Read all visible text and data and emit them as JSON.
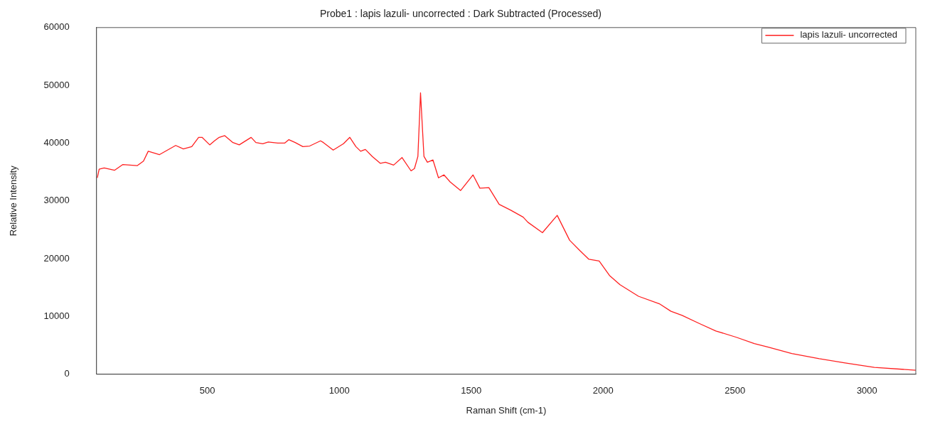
{
  "chart_data": {
    "type": "line",
    "title": "Probe1 : lapis lazuli- uncorrected : Dark Subtracted (Processed)",
    "xlabel": "Raman Shift (cm-1)",
    "ylabel": "Relative Intensity",
    "xlim": [
      80,
      3185
    ],
    "xticks": [
      500,
      1000,
      1500,
      2000,
      2500,
      3000
    ],
    "ylim": [
      0,
      60000
    ],
    "yticks": [
      0,
      10000,
      20000,
      30000,
      40000,
      50000,
      60000
    ],
    "grid": false,
    "legend": "top right",
    "marker": "none",
    "line_style": "solid",
    "series": [
      {
        "name": "lapis lazuli- uncorrected",
        "color": "#ff2020",
        "x": [
          83,
          90,
          109,
          148,
          180,
          234,
          258,
          276,
          318,
          349,
          380,
          409,
          441,
          467,
          480,
          509,
          527,
          545,
          566,
          597,
          621,
          666,
          684,
          710,
          731,
          767,
          793,
          809,
          833,
          862,
          888,
          929,
          940,
          977,
          1016,
          1040,
          1063,
          1081,
          1099,
          1125,
          1156,
          1175,
          1206,
          1238,
          1272,
          1285,
          1298,
          1308,
          1321,
          1334,
          1355,
          1376,
          1397,
          1420,
          1460,
          1507,
          1533,
          1567,
          1606,
          1650,
          1697,
          1715,
          1770,
          1826,
          1873,
          1912,
          1946,
          1985,
          2024,
          2064,
          2134,
          2213,
          2257,
          2299,
          2364,
          2427,
          2505,
          2573,
          2626,
          2715,
          2819,
          2913,
          3028,
          3185
        ],
        "values": [
          34000,
          35500,
          35700,
          35300,
          36300,
          36100,
          36900,
          38600,
          38000,
          38800,
          39600,
          39000,
          39400,
          41000,
          41000,
          39700,
          40400,
          41000,
          41300,
          40100,
          39700,
          41000,
          40100,
          39900,
          40200,
          40000,
          40000,
          40600,
          40100,
          39400,
          39500,
          40400,
          40100,
          38800,
          39900,
          41000,
          39400,
          38600,
          38900,
          37700,
          36500,
          36700,
          36200,
          37500,
          35200,
          35600,
          37700,
          48700,
          37700,
          36700,
          37100,
          34000,
          34500,
          33300,
          31800,
          34500,
          32200,
          32300,
          29400,
          28400,
          27200,
          26300,
          24500,
          27500,
          23200,
          21400,
          19900,
          19600,
          17100,
          15500,
          13500,
          12200,
          10900,
          10200,
          8800,
          7500,
          6400,
          5300,
          4700,
          3600,
          2700,
          2000,
          1200,
          700
        ]
      }
    ]
  }
}
